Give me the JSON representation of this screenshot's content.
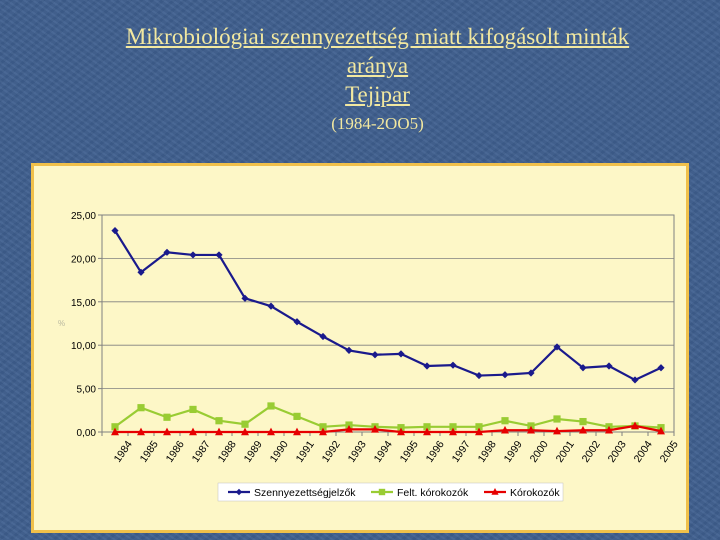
{
  "slide": {
    "title_line1": "Mikrobiológiai szennyezettség miatt kifogásolt minták",
    "title_line2": "aránya",
    "title_line3": "Tejipar",
    "years": "(1984-2OO5)"
  },
  "colors": {
    "background": "#3f5f8f",
    "title": "#f2e8a0",
    "chart_frame": "#f0c04a",
    "chart_bg": "#fdf7c7"
  },
  "chart_data": {
    "type": "line",
    "title": "",
    "xlabel": "",
    "ylabel": "%",
    "ylim": [
      0,
      25
    ],
    "yticks": [
      "25,00",
      "20,00",
      "15,00",
      "10,00",
      "5,00",
      "0,00"
    ],
    "ytick_values": [
      25,
      20,
      15,
      10,
      5,
      0
    ],
    "grid": true,
    "legend_position": "bottom",
    "x": [
      "1984",
      "1985",
      "1986",
      "1987",
      "1988",
      "1989",
      "1990",
      "1991",
      "1992",
      "1993",
      "1994",
      "1995",
      "1996",
      "1997",
      "1998",
      "1999",
      "2000",
      "2001",
      "2002",
      "2003",
      "2004",
      "2005"
    ],
    "series": [
      {
        "name": "Szennyezettségjelzők",
        "color": "#1a1a8c",
        "marker": "diamond",
        "values": [
          23.2,
          18.4,
          20.7,
          20.4,
          20.4,
          15.4,
          14.5,
          12.7,
          11.0,
          9.4,
          8.9,
          9.0,
          7.6,
          7.7,
          6.5,
          6.6,
          6.8,
          9.8,
          7.4,
          7.6,
          6.0,
          7.4
        ]
      },
      {
        "name": "Felt. kórokozók",
        "color": "#99cc33",
        "marker": "square",
        "values": [
          0.6,
          2.8,
          1.7,
          2.6,
          1.3,
          0.9,
          3.0,
          1.8,
          0.6,
          0.8,
          0.6,
          0.5,
          0.6,
          0.6,
          0.6,
          1.3,
          0.7,
          1.5,
          1.2,
          0.6,
          0.7,
          0.5
        ]
      },
      {
        "name": "Kórokozók",
        "color": "#e60000",
        "marker": "triangle",
        "values": [
          0.0,
          0.0,
          0.0,
          0.0,
          0.0,
          0.0,
          0.0,
          0.0,
          0.0,
          0.3,
          0.3,
          0.0,
          0.0,
          0.0,
          0.0,
          0.2,
          0.2,
          0.1,
          0.2,
          0.2,
          0.7,
          0.1
        ]
      }
    ]
  }
}
